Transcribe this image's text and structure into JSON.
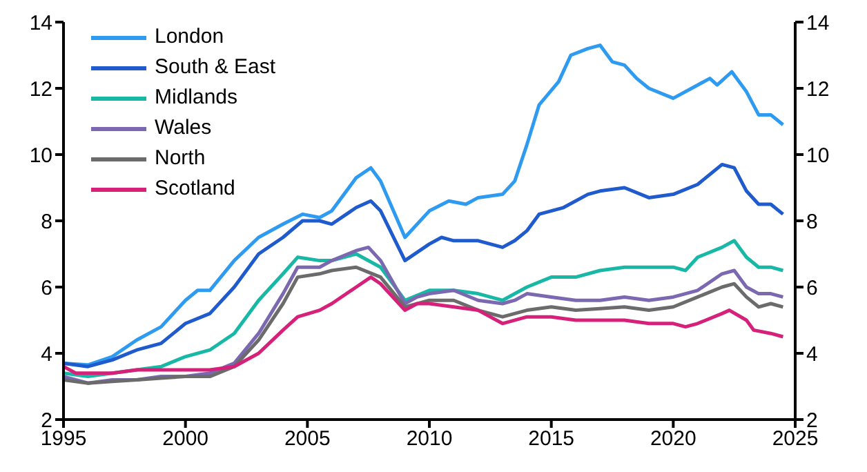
{
  "chart_data": {
    "type": "line",
    "xlim": [
      1995,
      2025
    ],
    "xticks": [
      1995,
      2000,
      2005,
      2010,
      2015,
      2020,
      2025
    ],
    "ylim": [
      2,
      14
    ],
    "yticks": [
      2,
      4,
      6,
      8,
      10,
      12,
      14
    ],
    "y2lim": [
      2,
      14
    ],
    "y2ticks": [
      2,
      4,
      6,
      8,
      10,
      12,
      14
    ],
    "grid": false,
    "legend": "top left",
    "marker": "none",
    "line_style": "solid",
    "series": [
      {
        "name": "London",
        "color": "#2e9bf0",
        "x": [
          1995,
          1996,
          1997,
          1998,
          1999,
          2000,
          2000.5,
          2001,
          2002,
          2003,
          2004,
          2004.8,
          2005.5,
          2006,
          2007,
          2007.6,
          2008,
          2009,
          2010,
          2010.8,
          2011.5,
          2012,
          2013,
          2013.5,
          2014,
          2014.5,
          2015.3,
          2015.8,
          2016.5,
          2017,
          2017.5,
          2018,
          2018.5,
          2019,
          2020,
          2021,
          2021.5,
          2021.8,
          2022.4,
          2023,
          2023.5,
          2024,
          2024.5
        ],
        "values": [
          3.7,
          3.65,
          3.9,
          4.4,
          4.8,
          5.6,
          5.9,
          5.9,
          6.8,
          7.5,
          7.9,
          8.2,
          8.1,
          8.3,
          9.3,
          9.6,
          9.2,
          7.5,
          8.3,
          8.6,
          8.5,
          8.7,
          8.8,
          9.2,
          10.3,
          11.5,
          12.2,
          13.0,
          13.2,
          13.3,
          12.8,
          12.7,
          12.3,
          12.0,
          11.7,
          12.1,
          12.3,
          12.1,
          12.5,
          11.9,
          11.2,
          11.2,
          10.9
        ]
      },
      {
        "name": "South & East",
        "color": "#1f5bcc",
        "x": [
          1995,
          1996,
          1997,
          1998,
          1999,
          2000,
          2001,
          2002,
          2003,
          2004,
          2004.8,
          2005.5,
          2006,
          2007,
          2007.6,
          2008,
          2009,
          2010,
          2010.5,
          2011,
          2012,
          2013,
          2013.5,
          2014,
          2014.5,
          2015.5,
          2016.5,
          2017,
          2018,
          2019,
          2020,
          2021,
          2022,
          2022.5,
          2023,
          2023.5,
          2024,
          2024.5
        ],
        "values": [
          3.7,
          3.6,
          3.8,
          4.1,
          4.3,
          4.9,
          5.2,
          6.0,
          7.0,
          7.5,
          8.0,
          8.0,
          7.9,
          8.4,
          8.6,
          8.3,
          6.8,
          7.3,
          7.5,
          7.4,
          7.4,
          7.2,
          7.4,
          7.7,
          8.2,
          8.4,
          8.8,
          8.9,
          9.0,
          8.7,
          8.8,
          9.1,
          9.7,
          9.6,
          8.9,
          8.5,
          8.5,
          8.2
        ]
      },
      {
        "name": "Midlands",
        "color": "#19b8a6",
        "x": [
          1995,
          1996,
          1997,
          1998,
          1999,
          2000,
          2001,
          2002,
          2003,
          2004,
          2004.6,
          2005.5,
          2006,
          2007,
          2008,
          2009,
          2010,
          2011,
          2012,
          2013,
          2014,
          2015,
          2016,
          2017,
          2018,
          2019,
          2020,
          2020.5,
          2021,
          2022,
          2022.5,
          2023,
          2023.5,
          2024,
          2024.5
        ],
        "values": [
          3.4,
          3.3,
          3.4,
          3.5,
          3.6,
          3.9,
          4.1,
          4.6,
          5.6,
          6.4,
          6.9,
          6.8,
          6.8,
          7.0,
          6.6,
          5.6,
          5.9,
          5.9,
          5.8,
          5.6,
          6.0,
          6.3,
          6.3,
          6.5,
          6.6,
          6.6,
          6.6,
          6.5,
          6.9,
          7.2,
          7.4,
          6.9,
          6.6,
          6.6,
          6.5
        ]
      },
      {
        "name": "Wales",
        "color": "#7b68b0",
        "x": [
          1995,
          1996,
          1997,
          1998,
          1999,
          2000,
          2001,
          2002,
          2003,
          2004,
          2004.6,
          2005.5,
          2006,
          2007,
          2007.5,
          2008,
          2009,
          2009.5,
          2010,
          2011,
          2012,
          2013,
          2013.5,
          2014,
          2015,
          2016,
          2017,
          2018,
          2019,
          2020,
          2021,
          2022,
          2022.5,
          2023,
          2023.5,
          2024,
          2024.5
        ],
        "values": [
          3.3,
          3.1,
          3.2,
          3.2,
          3.3,
          3.3,
          3.4,
          3.7,
          4.6,
          5.8,
          6.6,
          6.6,
          6.8,
          7.1,
          7.2,
          6.8,
          5.5,
          5.7,
          5.8,
          5.9,
          5.6,
          5.5,
          5.6,
          5.8,
          5.7,
          5.6,
          5.6,
          5.7,
          5.6,
          5.7,
          5.9,
          6.4,
          6.5,
          6.0,
          5.8,
          5.8,
          5.7
        ]
      },
      {
        "name": "North",
        "color": "#6b6b6b",
        "x": [
          1995,
          1996,
          1997,
          1998,
          1999,
          2000,
          2001,
          2002,
          2003,
          2004,
          2004.6,
          2005.5,
          2006,
          2007,
          2008,
          2009,
          2010,
          2011,
          2012,
          2013,
          2014,
          2015,
          2016,
          2017,
          2018,
          2019,
          2020,
          2021,
          2022,
          2022.5,
          2023,
          2023.5,
          2024,
          2024.5
        ],
        "values": [
          3.2,
          3.1,
          3.15,
          3.2,
          3.25,
          3.3,
          3.3,
          3.6,
          4.4,
          5.5,
          6.3,
          6.4,
          6.5,
          6.6,
          6.3,
          5.4,
          5.6,
          5.6,
          5.3,
          5.1,
          5.3,
          5.4,
          5.3,
          5.35,
          5.4,
          5.3,
          5.4,
          5.7,
          6.0,
          6.1,
          5.7,
          5.4,
          5.5,
          5.4
        ]
      },
      {
        "name": "Scotland",
        "color": "#d6217a",
        "x": [
          1995,
          1995.5,
          1996,
          1997,
          1998,
          1999,
          2000,
          2001,
          2002,
          2003,
          2004,
          2004.6,
          2005.5,
          2006,
          2007,
          2007.6,
          2008,
          2009,
          2009.5,
          2010,
          2011,
          2012,
          2013,
          2014,
          2015,
          2016,
          2017,
          2018,
          2019,
          2020,
          2020.5,
          2021,
          2022,
          2022.3,
          2023,
          2023.3,
          2024,
          2024.5
        ],
        "values": [
          3.6,
          3.4,
          3.4,
          3.4,
          3.5,
          3.5,
          3.5,
          3.5,
          3.6,
          4.0,
          4.7,
          5.1,
          5.3,
          5.5,
          6.0,
          6.3,
          6.1,
          5.3,
          5.5,
          5.5,
          5.4,
          5.3,
          4.9,
          5.1,
          5.1,
          5.0,
          5.0,
          5.0,
          4.9,
          4.9,
          4.8,
          4.9,
          5.2,
          5.3,
          5.0,
          4.7,
          4.6,
          4.5
        ]
      }
    ]
  }
}
